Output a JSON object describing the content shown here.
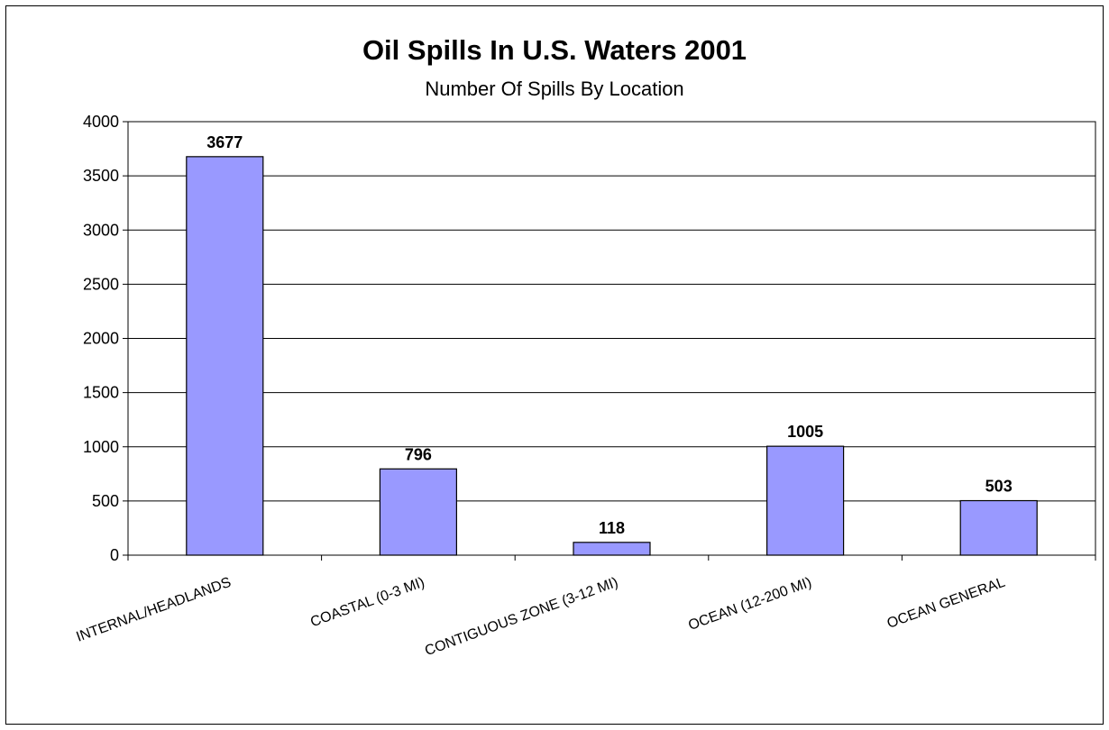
{
  "chart_data": {
    "type": "bar",
    "title": "Oil Spills In U.S. Waters 2001",
    "subtitle": "Number Of Spills By Location",
    "xlabel": "",
    "ylabel": "",
    "categories": [
      "INTERNAL/HEADLANDS",
      "COASTAL (0-3 MI)",
      "CONTIGUOUS ZONE (3-12 MI)",
      "OCEAN (12-200 MI)",
      "OCEAN GENERAL"
    ],
    "values": [
      3677,
      796,
      118,
      1005,
      503
    ],
    "data_labels": [
      "3677",
      "796",
      "118",
      "1005",
      "503"
    ],
    "ylim": [
      0,
      4000
    ],
    "yticks": [
      0,
      500,
      1000,
      1500,
      2000,
      2500,
      3000,
      3500,
      4000
    ],
    "grid": "horizontal",
    "legend": "none",
    "colors": {
      "bar_fill": "#9999ff",
      "bar_stroke": "#000000",
      "gridline": "#000000",
      "axis": "#000000"
    }
  }
}
